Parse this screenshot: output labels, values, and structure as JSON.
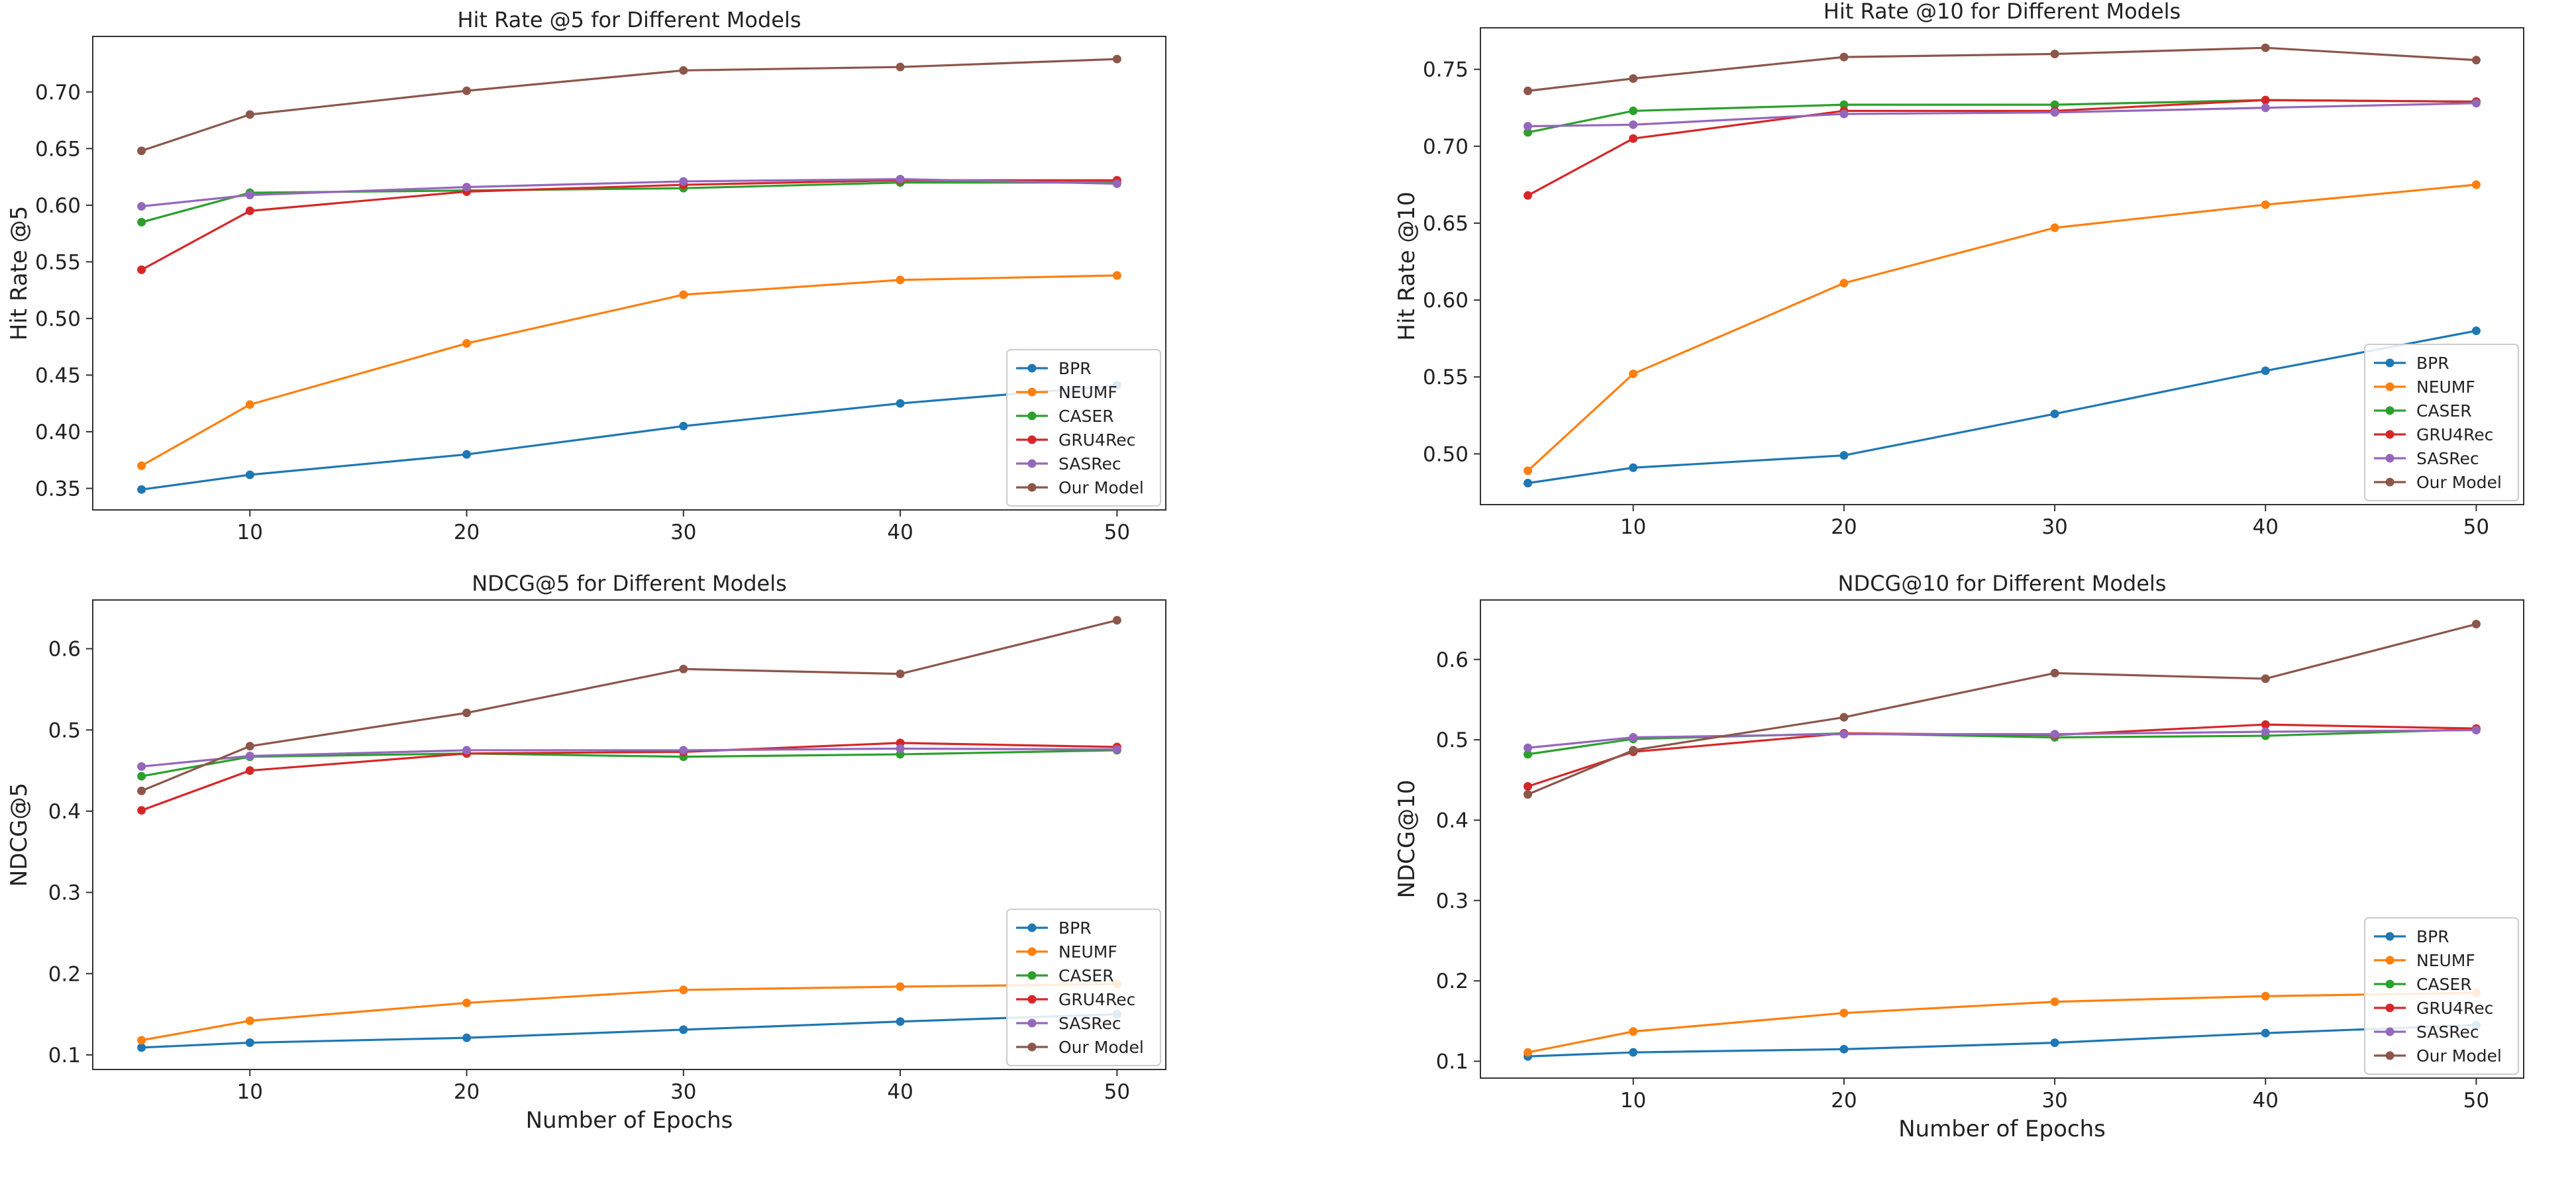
{
  "colors": {
    "BPR": "#1f77b4",
    "NEUMF": "#ff7f0e",
    "CASER": "#2ca02c",
    "GRU4Rec": "#d62728",
    "SASRec": "#9467bd",
    "Our Model": "#8c564b"
  },
  "chart_data": [
    {
      "type": "line",
      "title": "Hit Rate @5 for Different Models",
      "xlabel": "",
      "ylabel": "Hit Rate @5",
      "x": [
        5,
        10,
        20,
        30,
        40,
        50
      ],
      "xticks": [
        10,
        20,
        30,
        40,
        50
      ],
      "xlim": [
        2.75,
        52.25
      ],
      "yticks": [
        0.35,
        0.4,
        0.45,
        0.5,
        0.55,
        0.6,
        0.65,
        0.7
      ],
      "ylim": [
        0.331,
        0.749
      ],
      "grid": false,
      "legend": "lower-right",
      "series": [
        {
          "name": "BPR",
          "values": [
            0.349,
            0.362,
            0.38,
            0.405,
            0.425,
            0.441
          ]
        },
        {
          "name": "NEUMF",
          "values": [
            0.37,
            0.424,
            0.478,
            0.521,
            0.534,
            0.538
          ]
        },
        {
          "name": "CASER",
          "values": [
            0.585,
            0.611,
            0.613,
            0.615,
            0.62,
            0.62
          ]
        },
        {
          "name": "GRU4Rec",
          "values": [
            0.543,
            0.595,
            0.612,
            0.618,
            0.622,
            0.622
          ]
        },
        {
          "name": "SASRec",
          "values": [
            0.599,
            0.609,
            0.616,
            0.621,
            0.623,
            0.619
          ]
        },
        {
          "name": "Our Model",
          "values": [
            0.648,
            0.68,
            0.701,
            0.719,
            0.722,
            0.729
          ]
        }
      ]
    },
    {
      "type": "line",
      "title": "Hit Rate @10 for Different Models",
      "xlabel": "",
      "ylabel": "Hit Rate @10",
      "x": [
        5,
        10,
        20,
        30,
        40,
        50
      ],
      "xticks": [
        10,
        20,
        30,
        40,
        50
      ],
      "xlim": [
        2.75,
        52.25
      ],
      "yticks": [
        0.5,
        0.55,
        0.6,
        0.65,
        0.7,
        0.75
      ],
      "ylim": [
        0.467,
        0.777
      ],
      "grid": false,
      "legend": "lower-right",
      "series": [
        {
          "name": "BPR",
          "values": [
            0.481,
            0.491,
            0.499,
            0.526,
            0.554,
            0.58
          ]
        },
        {
          "name": "NEUMF",
          "values": [
            0.489,
            0.552,
            0.611,
            0.647,
            0.662,
            0.675
          ]
        },
        {
          "name": "CASER",
          "values": [
            0.709,
            0.723,
            0.727,
            0.727,
            0.73,
            0.729
          ]
        },
        {
          "name": "GRU4Rec",
          "values": [
            0.668,
            0.705,
            0.723,
            0.723,
            0.73,
            0.729
          ]
        },
        {
          "name": "SASRec",
          "values": [
            0.713,
            0.714,
            0.721,
            0.722,
            0.725,
            0.728
          ]
        },
        {
          "name": "Our Model",
          "values": [
            0.736,
            0.744,
            0.758,
            0.76,
            0.764,
            0.756
          ]
        }
      ]
    },
    {
      "type": "line",
      "title": "NDCG@5 for Different Models",
      "xlabel": "Number of Epochs",
      "ylabel": "NDCG@5",
      "x": [
        5,
        10,
        20,
        30,
        40,
        50
      ],
      "xticks": [
        10,
        20,
        30,
        40,
        50
      ],
      "xlim": [
        2.75,
        52.25
      ],
      "yticks": [
        0.1,
        0.2,
        0.3,
        0.4,
        0.5,
        0.6
      ],
      "ylim": [
        0.082,
        0.66
      ],
      "grid": false,
      "legend": "lower-right",
      "series": [
        {
          "name": "BPR",
          "values": [
            0.109,
            0.115,
            0.121,
            0.131,
            0.141,
            0.15
          ]
        },
        {
          "name": "NEUMF",
          "values": [
            0.118,
            0.142,
            0.164,
            0.18,
            0.184,
            0.187
          ]
        },
        {
          "name": "CASER",
          "values": [
            0.443,
            0.467,
            0.471,
            0.467,
            0.47,
            0.475
          ]
        },
        {
          "name": "GRU4Rec",
          "values": [
            0.401,
            0.45,
            0.471,
            0.473,
            0.484,
            0.479
          ]
        },
        {
          "name": "SASRec",
          "values": [
            0.455,
            0.468,
            0.475,
            0.475,
            0.477,
            0.476
          ]
        },
        {
          "name": "Our Model",
          "values": [
            0.425,
            0.48,
            0.521,
            0.575,
            0.569,
            0.635
          ]
        }
      ]
    },
    {
      "type": "line",
      "title": "NDCG@10 for Different Models",
      "xlabel": "Number of Epochs",
      "ylabel": "NDCG@10",
      "x": [
        5,
        10,
        20,
        30,
        40,
        50
      ],
      "xticks": [
        10,
        20,
        30,
        40,
        50
      ],
      "xlim": [
        2.75,
        52.25
      ],
      "yticks": [
        0.1,
        0.2,
        0.3,
        0.4,
        0.5,
        0.6
      ],
      "ylim": [
        0.079,
        0.674
      ],
      "grid": false,
      "legend": "lower-right",
      "series": [
        {
          "name": "BPR",
          "values": [
            0.106,
            0.111,
            0.115,
            0.123,
            0.135,
            0.145
          ]
        },
        {
          "name": "NEUMF",
          "values": [
            0.111,
            0.137,
            0.16,
            0.174,
            0.181,
            0.185
          ]
        },
        {
          "name": "CASER",
          "values": [
            0.482,
            0.501,
            0.508,
            0.503,
            0.505,
            0.513
          ]
        },
        {
          "name": "GRU4Rec",
          "values": [
            0.442,
            0.485,
            0.508,
            0.506,
            0.519,
            0.514
          ]
        },
        {
          "name": "SASRec",
          "values": [
            0.49,
            0.503,
            0.507,
            0.507,
            0.51,
            0.512
          ]
        },
        {
          "name": "Our Model",
          "values": [
            0.432,
            0.487,
            0.528,
            0.583,
            0.576,
            0.644
          ]
        }
      ]
    }
  ]
}
